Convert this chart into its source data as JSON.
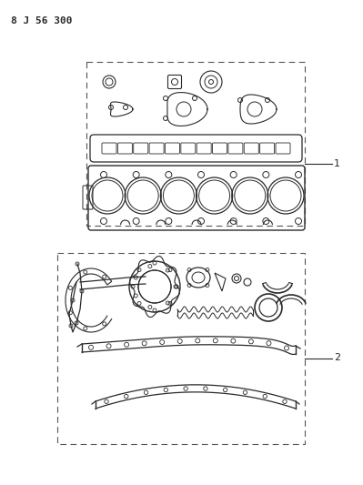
{
  "title": "8 J 56 300",
  "background_color": "#ffffff",
  "line_color": "#2a2a2a",
  "dashed_color": "#555555",
  "label1": "1",
  "label2": "2",
  "figsize": [
    3.99,
    5.33
  ],
  "dpi": 100
}
